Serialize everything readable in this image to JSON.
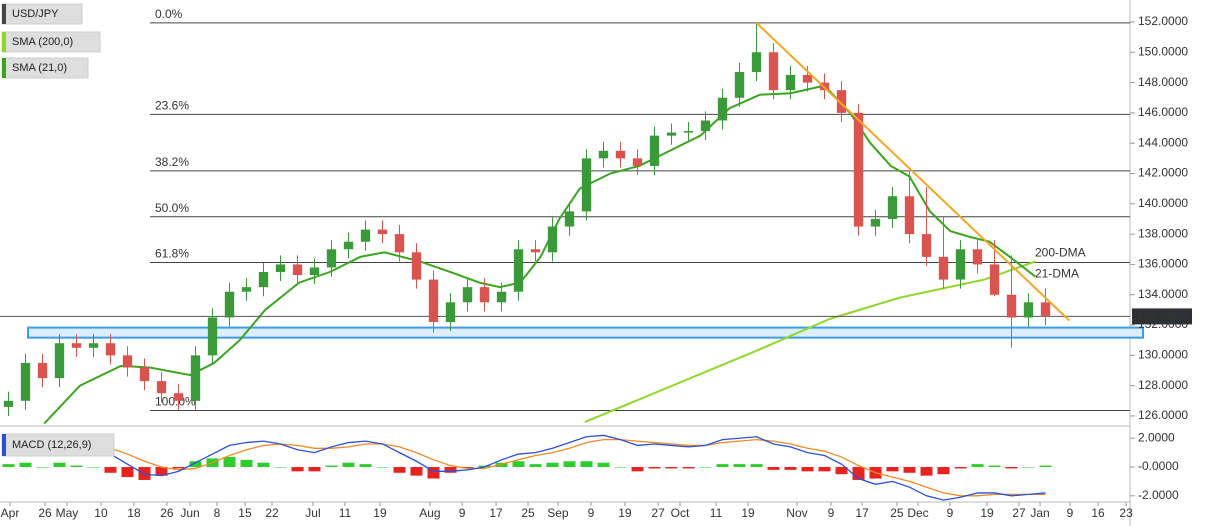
{
  "chart_data": {
    "type": "candlestick",
    "title": "USD/JPY",
    "up_color": "#3a9a3a",
    "down_color": "#d9534f",
    "open": [
      126.6,
      127.0,
      129.5,
      128.5,
      130.8,
      130.5,
      130.8,
      130.0,
      129.2,
      128.3,
      127.5,
      127.0,
      130.0,
      132.5,
      134.2,
      134.5,
      135.5,
      136.0,
      135.3,
      135.8,
      137.0,
      137.5,
      138.3,
      138.0,
      136.8,
      135.0,
      132.2,
      133.5,
      134.5,
      133.5,
      134.2,
      137.0,
      136.8,
      138.5,
      139.5,
      143.0,
      143.5,
      143.0,
      142.5,
      144.5,
      144.7,
      144.8,
      145.5,
      147.0,
      148.7,
      150.0,
      147.5,
      148.5,
      148.0,
      147.5,
      146.0,
      138.5,
      139.0,
      140.5,
      138.0,
      136.5,
      135.0,
      137.0,
      136.0,
      134.0,
      132.5,
      133.5
    ],
    "high": [
      127.6,
      130.1,
      130.1,
      131.4,
      131.4,
      131.4,
      131.4,
      130.6,
      129.8,
      128.9,
      128.1,
      130.6,
      133.1,
      134.8,
      135.1,
      136.1,
      136.6,
      136.6,
      136.4,
      137.6,
      138.1,
      138.9,
      138.9,
      138.6,
      137.4,
      135.6,
      134.1,
      135.1,
      135.1,
      134.8,
      137.6,
      137.6,
      139.1,
      140.1,
      143.6,
      144.1,
      144.1,
      143.6,
      145.1,
      145.3,
      145.4,
      146.1,
      147.6,
      149.3,
      151.9,
      150.6,
      149.1,
      149.1,
      148.6,
      148.1,
      146.6,
      139.6,
      141.1,
      142.2,
      141.1,
      139.1,
      137.6,
      137.6,
      137.6,
      136.6,
      134.1,
      134.4
    ],
    "low": [
      126.0,
      126.4,
      127.9,
      127.9,
      129.9,
      129.9,
      129.4,
      128.6,
      127.7,
      126.9,
      126.4,
      126.4,
      129.4,
      131.9,
      133.6,
      133.9,
      134.9,
      134.7,
      134.7,
      135.2,
      136.4,
      136.9,
      137.4,
      136.2,
      134.4,
      131.5,
      131.6,
      132.9,
      132.9,
      132.9,
      133.6,
      136.2,
      136.2,
      137.9,
      138.9,
      142.4,
      142.4,
      141.9,
      141.9,
      143.9,
      144.1,
      144.2,
      144.9,
      146.4,
      148.1,
      146.9,
      146.9,
      147.4,
      146.9,
      145.4,
      137.9,
      137.9,
      138.4,
      137.4,
      135.9,
      134.4,
      134.4,
      135.4,
      133.9,
      130.5,
      131.9,
      132.0
    ],
    "close": [
      127.0,
      129.5,
      128.5,
      130.8,
      130.5,
      130.8,
      130.0,
      129.2,
      128.3,
      127.5,
      127.0,
      130.0,
      132.5,
      134.2,
      134.5,
      135.5,
      136.0,
      135.3,
      135.8,
      137.0,
      137.5,
      138.3,
      138.0,
      136.8,
      135.0,
      132.2,
      133.5,
      134.5,
      133.5,
      134.2,
      137.0,
      136.8,
      138.5,
      139.5,
      143.0,
      143.5,
      143.0,
      142.5,
      144.5,
      144.7,
      144.8,
      145.5,
      147.0,
      148.7,
      150.0,
      147.5,
      148.5,
      148.0,
      147.5,
      146.0,
      138.5,
      139.0,
      140.5,
      138.0,
      136.5,
      135.0,
      137.0,
      136.0,
      134.0,
      132.5,
      133.5,
      132.569
    ],
    "last_price": {
      "value": 132.569,
      "label": "132.5690"
    },
    "sma200": {
      "name": "SMA (200,0)",
      "label": "200-DMA",
      "color": "#8fd82a",
      "x": [
        34.4,
        44.7,
        48.8,
        52.9,
        57.9,
        60.9
      ],
      "values": [
        125.6,
        130.4,
        132.4,
        133.8,
        135.0,
        136.2
      ]
    },
    "sma21": {
      "name": "SMA (21,0)",
      "label": "21-DMA",
      "color": "#3aa51e",
      "x": [
        2.6,
        4.7,
        7.1,
        8.8,
        11.2,
        12.6,
        14.1,
        15.6,
        17.6,
        19.4,
        21.2,
        22.6,
        24.7,
        26.5,
        28.2,
        29.4,
        30.6,
        31.8,
        32.9,
        34.1,
        35.9,
        37.6,
        39.4,
        41.2,
        42.9,
        44.7,
        46.5,
        48.5,
        50,
        51.2,
        52.4,
        53.5,
        54.7,
        55.9,
        57.1,
        58.2,
        59.4,
        60.9
      ],
      "values": [
        125.5,
        128,
        129.3,
        129.2,
        128.7,
        129.5,
        131,
        133,
        134.8,
        135.5,
        136.5,
        136.8,
        136.2,
        135.5,
        134.8,
        134.5,
        134.8,
        136.5,
        139,
        141,
        142,
        142.5,
        143.5,
        144.5,
        146.3,
        147.2,
        147.3,
        147.8,
        146,
        144,
        142.5,
        141.8,
        139.5,
        138.2,
        137.8,
        137.5,
        136.5,
        135.2
      ]
    },
    "fib_levels": [
      {
        "ratio": "0.0%",
        "price": 151.94
      },
      {
        "ratio": "23.6%",
        "price": 145.9
      },
      {
        "ratio": "38.2%",
        "price": 142.17
      },
      {
        "ratio": "50.0%",
        "price": 139.15
      },
      {
        "ratio": "61.8%",
        "price": 136.13
      },
      {
        "ratio": "100.0%",
        "price": 126.36
      }
    ],
    "trend_line": {
      "color": "#f5a623",
      "x": [
        44.5,
        62.9
      ],
      "values": [
        151.94,
        132.3
      ]
    },
    "support_zone": {
      "color": "#3d9be9",
      "low": 131.3,
      "high": 131.7
    },
    "xlim": [
      0,
      66.47
    ],
    "ylim": [
      125.47,
      153.45
    ],
    "yticks": [
      {
        "value": 126,
        "label": "126.0000"
      },
      {
        "value": 128,
        "label": "128.0000"
      },
      {
        "value": 130,
        "label": "130.0000"
      },
      {
        "value": 132,
        "label": "132.0000"
      },
      {
        "value": 134,
        "label": "134.0000"
      },
      {
        "value": 136,
        "label": "136.0000"
      },
      {
        "value": 138,
        "label": "138.0000"
      },
      {
        "value": 140,
        "label": "140.0000"
      },
      {
        "value": 142,
        "label": "142.0000"
      },
      {
        "value": 144,
        "label": "144.0000"
      },
      {
        "value": 146,
        "label": "146.0000"
      },
      {
        "value": 148,
        "label": "148.0000"
      },
      {
        "value": 150,
        "label": "150.0000"
      },
      {
        "value": 152,
        "label": "152.0000"
      }
    ],
    "xticks": [
      {
        "value": 0.59,
        "label": "Apr"
      },
      {
        "value": 2.65,
        "label": "26"
      },
      {
        "value": 3.94,
        "label": "May"
      },
      {
        "value": 5.94,
        "label": "10"
      },
      {
        "value": 7.88,
        "label": "18"
      },
      {
        "value": 9.82,
        "label": "26"
      },
      {
        "value": 11.18,
        "label": "Jun"
      },
      {
        "value": 12.76,
        "label": "8"
      },
      {
        "value": 14.41,
        "label": "15"
      },
      {
        "value": 16.0,
        "label": "22"
      },
      {
        "value": 18.41,
        "label": "Jul"
      },
      {
        "value": 20.29,
        "label": "11"
      },
      {
        "value": 22.35,
        "label": "19"
      },
      {
        "value": 25.29,
        "label": "Aug"
      },
      {
        "value": 27.18,
        "label": "9"
      },
      {
        "value": 29.18,
        "label": "17"
      },
      {
        "value": 31.06,
        "label": "25"
      },
      {
        "value": 32.82,
        "label": "Sep"
      },
      {
        "value": 34.76,
        "label": "9"
      },
      {
        "value": 36.76,
        "label": "19"
      },
      {
        "value": 38.71,
        "label": "27"
      },
      {
        "value": 40.0,
        "label": "Oct"
      },
      {
        "value": 42.12,
        "label": "11"
      },
      {
        "value": 44.0,
        "label": "19"
      },
      {
        "value": 46.88,
        "label": "Nov"
      },
      {
        "value": 48.88,
        "label": "9"
      },
      {
        "value": 50.71,
        "label": "17"
      },
      {
        "value": 52.76,
        "label": "25"
      },
      {
        "value": 54.0,
        "label": "Dec"
      },
      {
        "value": 55.88,
        "label": "9"
      },
      {
        "value": 58.06,
        "label": "19"
      },
      {
        "value": 59.94,
        "label": "27"
      },
      {
        "value": 61.18,
        "label": "Jan"
      },
      {
        "value": 62.94,
        "label": "9"
      },
      {
        "value": 64.59,
        "label": "16"
      },
      {
        "value": 66.24,
        "label": "23"
      }
    ],
    "macd": {
      "name": "MACD (12,26,9)",
      "ylim": [
        -2.43,
        2.71
      ],
      "yticks": [
        {
          "value": 2,
          "label": "2.0000"
        },
        {
          "value": 0,
          "label": "-0.0000"
        },
        {
          "value": -2,
          "label": "-2.0000"
        }
      ],
      "macd_color": "#2b50d8",
      "signal_color": "#f08a24",
      "pos_color": "#2ecc2e",
      "neg_color": "#e8231f",
      "macd": [
        1.2,
        1.5,
        1.3,
        1.8,
        1.6,
        1.5,
        0.9,
        0.2,
        -0.5,
        -0.6,
        -0.3,
        0.3,
        0.9,
        1.5,
        1.7,
        1.8,
        1.6,
        1.2,
        1.0,
        1.4,
        1.7,
        1.8,
        1.6,
        1.0,
        0.4,
        -0.3,
        -0.3,
        -0.2,
        0,
        0.5,
        0.9,
        1.0,
        1.3,
        1.7,
        2.1,
        2.2,
        1.9,
        1.5,
        1.6,
        1.5,
        1.4,
        1.5,
        1.9,
        2.0,
        2.1,
        1.6,
        1.4,
        1.0,
        0.8,
        0.2,
        -0.8,
        -1.2,
        -1.0,
        -1.4,
        -2.0,
        -2.3,
        -2.1,
        -1.8,
        -1.8,
        -2.0,
        -1.9,
        -1.8
      ],
      "signal": [
        1.0,
        1.2,
        1.3,
        1.5,
        1.5,
        1.5,
        1.3,
        0.9,
        0.4,
        0.0,
        -0.2,
        -0.1,
        0.3,
        0.8,
        1.2,
        1.5,
        1.6,
        1.5,
        1.3,
        1.3,
        1.4,
        1.6,
        1.6,
        1.4,
        1.0,
        0.5,
        0.1,
        -0.1,
        -0.1,
        0.2,
        0.5,
        0.8,
        1.0,
        1.3,
        1.7,
        1.9,
        1.9,
        1.8,
        1.7,
        1.6,
        1.5,
        1.5,
        1.7,
        1.8,
        1.9,
        1.8,
        1.6,
        1.3,
        1.1,
        0.7,
        0.1,
        -0.4,
        -0.7,
        -1.0,
        -1.4,
        -1.8,
        -2.0,
        -2.0,
        -1.9,
        -1.9,
        -1.9,
        -1.9
      ],
      "histogram": [
        0.2,
        0.3,
        0,
        0.3,
        0.1,
        0,
        -0.4,
        -0.7,
        -0.9,
        -0.6,
        -0.1,
        0.4,
        0.6,
        0.7,
        0.5,
        0.3,
        0,
        -0.3,
        -0.3,
        0.1,
        0.3,
        0.2,
        0,
        -0.4,
        -0.6,
        -0.8,
        -0.4,
        -0.1,
        0.1,
        0.3,
        0.4,
        0.2,
        0.3,
        0.4,
        0.4,
        0.3,
        0,
        -0.3,
        -0.1,
        -0.1,
        -0.1,
        0,
        0.2,
        0.2,
        0.2,
        -0.2,
        -0.2,
        -0.3,
        -0.3,
        -0.5,
        -0.9,
        -0.8,
        -0.3,
        -0.4,
        -0.6,
        -0.5,
        -0.1,
        0.2,
        0.1,
        -0.1,
        0,
        0.1
      ]
    }
  }
}
